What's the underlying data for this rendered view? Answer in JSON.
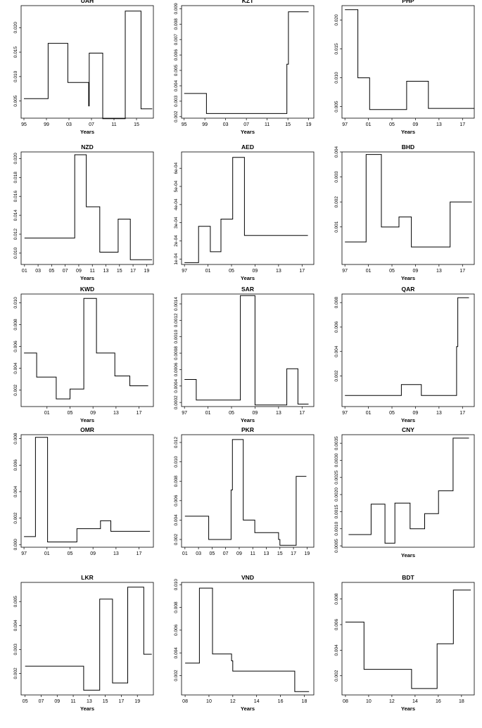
{
  "chart_data": [
    {
      "type": "line",
      "step": true,
      "title": "UAH",
      "xlabel": "Years",
      "ylabel": "",
      "xticks": [
        "95",
        "99",
        "03",
        "07",
        "11",
        "15"
      ],
      "xtick_values": [
        1995,
        1999,
        2003,
        2007,
        2011,
        2015
      ],
      "xlim": [
        1994.5,
        2018
      ],
      "ylim": [
        0.0015,
        0.0245
      ],
      "yticks": [
        "0.005",
        "0.010",
        "0.015",
        "0.020"
      ],
      "ytick_values": [
        0.005,
        0.01,
        0.015,
        0.02
      ],
      "x": [
        1995,
        1997.5,
        1999.3,
        2002.8,
        2006.5,
        2006.6,
        2006.6,
        2009.0,
        2013.0,
        2015.8,
        2017.8
      ],
      "y": [
        0.0055,
        0.0055,
        0.0168,
        0.0088,
        0.004,
        0.0088,
        0.0148,
        0.0014,
        0.0234,
        0.0034,
        0.0034
      ]
    },
    {
      "type": "line",
      "step": true,
      "title": "KZT",
      "xlabel": "Years",
      "ylabel": "",
      "xticks": [
        "95",
        "99",
        "03",
        "07",
        "11",
        "15",
        "19"
      ],
      "xtick_values": [
        1995,
        1999,
        2003,
        2007,
        2011,
        2015,
        2019
      ],
      "xlim": [
        1994.5,
        2020
      ],
      "ylim": [
        0.0019,
        0.0092
      ],
      "yticks": [
        "0.002",
        "0.003",
        "0.004",
        "0.005",
        "0.006",
        "0.007",
        "0.008",
        "0.009"
      ],
      "ytick_values": [
        0.002,
        0.003,
        0.004,
        0.005,
        0.006,
        0.007,
        0.008,
        0.009
      ],
      "x": [
        1995,
        1999.3,
        2014.8,
        2014.8,
        2015,
        2015.1,
        2019
      ],
      "y": [
        0.0035,
        0.0022,
        0.0035,
        0.0054,
        0.0054,
        0.0088,
        0.0088
      ]
    },
    {
      "type": "line",
      "step": true,
      "title": "PHP",
      "xlabel": "Years",
      "ylabel": "",
      "xticks": [
        "97",
        "01",
        "05",
        "09",
        "13",
        "17"
      ],
      "xtick_values": [
        1997,
        2001,
        2005,
        2009,
        2013,
        2017
      ],
      "xlim": [
        1996.5,
        2019
      ],
      "ylim": [
        0.003,
        0.0225
      ],
      "yticks": [
        "0.005",
        "0.010",
        "0.015",
        "0.020"
      ],
      "ytick_values": [
        0.005,
        0.01,
        0.015,
        0.02
      ],
      "x": [
        1997,
        1999.2,
        2000.3,
        2001.2,
        2007.5,
        2011.2,
        2019
      ],
      "y": [
        0.0218,
        0.01,
        0.01,
        0.0045,
        0.0094,
        0.0047,
        0.0047
      ]
    },
    {
      "type": "line",
      "step": true,
      "title": "NZD",
      "xlabel": "Years",
      "ylabel": "",
      "xticks": [
        "01",
        "03",
        "05",
        "07",
        "09",
        "11",
        "13",
        "15",
        "17",
        "19"
      ],
      "xtick_values": [
        2001,
        2003,
        2005,
        2007,
        2009,
        2011,
        2013,
        2015,
        2017,
        2019
      ],
      "xlim": [
        2000.5,
        2020
      ],
      "ylim": [
        0.0088,
        0.0207
      ],
      "yticks": [
        "0.010",
        "0.012",
        "0.014",
        "0.016",
        "0.018",
        "0.020"
      ],
      "ytick_values": [
        0.01,
        0.012,
        0.014,
        0.016,
        0.018,
        0.02
      ],
      "x": [
        2001,
        2008.4,
        2010.1,
        2012.1,
        2014.8,
        2016.6,
        2019.8
      ],
      "y": [
        0.0116,
        0.0204,
        0.0149,
        0.0101,
        0.0136,
        0.0093,
        0.0093
      ]
    },
    {
      "type": "line",
      "step": true,
      "title": "AED",
      "xlabel": "Years",
      "ylabel": "",
      "xticks": [
        "97",
        "01",
        "05",
        "09",
        "13",
        "17"
      ],
      "xtick_values": [
        1997,
        2001,
        2005,
        2009,
        2013,
        2017
      ],
      "xlim": [
        1996.5,
        2019
      ],
      "ylim": [
        7e-05,
        0.00069
      ],
      "yticks": [
        "1e-04",
        "2e-04",
        "3e-04",
        "4e-04",
        "5e-04",
        "6e-04"
      ],
      "ytick_values": [
        0.0001,
        0.0002,
        0.0003,
        0.0004,
        0.0005,
        0.0006
      ],
      "x": [
        1997,
        1999.4,
        2001.4,
        2003.2,
        2005.2,
        2007.2,
        2008.7
      ],
      "y": [
        8e-05,
        0.00028,
        0.00014,
        0.00032,
        0.00066,
        0.00023,
        0.00023
      ],
      "x_end": 2018
    },
    {
      "type": "line",
      "step": true,
      "title": "BHD",
      "xlabel": "Years",
      "ylabel": "",
      "xticks": [
        "97",
        "01",
        "05",
        "09",
        "13",
        "17"
      ],
      "xtick_values": [
        1997,
        2001,
        2005,
        2009,
        2013,
        2017
      ],
      "xlim": [
        1996.5,
        2019
      ],
      "ylim": [
        -0.0005,
        0.004
      ],
      "yticks": [
        "0.001",
        "0.002",
        "0.003",
        "0.004"
      ],
      "ytick_values": [
        0.001,
        0.002,
        0.003,
        0.004
      ],
      "x": [
        1997,
        2000.6,
        2003.2,
        2006.2,
        2008.3,
        2014.9,
        2018.6
      ],
      "y": [
        0.0004,
        0.0039,
        0.001,
        0.0014,
        0.0002,
        0.002,
        0.002
      ]
    },
    {
      "type": "line",
      "step": true,
      "title": "KWD",
      "xlabel": "Years",
      "ylabel": "",
      "xticks": [
        "01",
        "05",
        "09",
        "13",
        "17"
      ],
      "xtick_values": [
        2001,
        2005,
        2009,
        2013,
        2017
      ],
      "xlim": [
        1996.5,
        2019.5
      ],
      "ylim": [
        0.0005,
        0.0108
      ],
      "yticks": [
        "0.002",
        "0.004",
        "0.006",
        "0.008",
        "0.010"
      ],
      "ytick_values": [
        0.002,
        0.004,
        0.006,
        0.008,
        0.01
      ],
      "x": [
        1997,
        1999.2,
        2002.6,
        2005.0,
        2007.4,
        2009.6,
        2012.8,
        2015.4,
        2018.6
      ],
      "y": [
        0.0054,
        0.0032,
        0.0012,
        0.0021,
        0.0104,
        0.0054,
        0.0033,
        0.0024,
        0.0024
      ]
    },
    {
      "type": "line",
      "step": true,
      "title": "SAR",
      "xlabel": "Years",
      "ylabel": "",
      "xticks": [
        "97",
        "01",
        "05",
        "09",
        "13",
        "17"
      ],
      "xtick_values": [
        1997,
        2001,
        2005,
        2009,
        2013,
        2017
      ],
      "xlim": [
        1996.5,
        2019
      ],
      "ylim": [
        0.00015,
        0.00152
      ],
      "yticks": [
        "0.0002",
        "0.0004",
        "0.0006",
        "0.0008",
        "0.0010",
        "0.0012",
        "0.0014"
      ],
      "ytick_values": [
        0.0002,
        0.0004,
        0.0006,
        0.0008,
        0.001,
        0.0012,
        0.0014
      ],
      "x": [
        1997,
        1999.0,
        2006.5,
        2009.0,
        2014.4,
        2016.3,
        2018.1
      ],
      "y": [
        0.00048,
        0.00023,
        0.0015,
        0.00017,
        0.00061,
        0.00018,
        0.00018
      ]
    },
    {
      "type": "line",
      "step": true,
      "title": "QAR",
      "xlabel": "Years",
      "ylabel": "",
      "xticks": [
        "97",
        "01",
        "05",
        "09",
        "13",
        "17"
      ],
      "xtick_values": [
        1997,
        2001,
        2005,
        2009,
        2013,
        2017
      ],
      "xlim": [
        1996.5,
        2019
      ],
      "ylim": [
        -0.0005,
        0.0087
      ],
      "yticks": [
        "0.002",
        "0.004",
        "0.006",
        "0.008"
      ],
      "ytick_values": [
        0.002,
        0.004,
        0.006,
        0.008
      ],
      "x": [
        1997,
        2006.6,
        2010.0,
        2016.0,
        2016.0,
        2016.2,
        2018.1
      ],
      "y": [
        0.0004,
        0.0013,
        0.0004,
        0.0044,
        0.0044,
        0.0084,
        0.0084
      ]
    },
    {
      "type": "line",
      "step": true,
      "title": "OMR",
      "xlabel": "",
      "ylabel": "",
      "xticks": [
        "97",
        "01",
        "05",
        "09",
        "13",
        "17"
      ],
      "xtick_values": [
        1997,
        2001,
        2005,
        2009,
        2013,
        2017
      ],
      "xlim": [
        1996.5,
        2019.5
      ],
      "ylim": [
        -0.0002,
        0.0083
      ],
      "yticks": [
        "0.000",
        "0.002",
        "0.004",
        "0.006",
        "0.008"
      ],
      "ytick_values": [
        0.0,
        0.002,
        0.004,
        0.006,
        0.008
      ],
      "x": [
        1997,
        1999.0,
        2001.1,
        2006.2,
        2010.3,
        2012.1,
        2018.9
      ],
      "y": [
        0.0006,
        0.0081,
        0.0002,
        0.0012,
        0.0018,
        0.001,
        0.001
      ]
    },
    {
      "type": "line",
      "step": true,
      "title": "PKR",
      "xlabel": "",
      "ylabel": "",
      "xticks": [
        "01",
        "03",
        "05",
        "07",
        "09",
        "11",
        "13",
        "15",
        "17",
        "19"
      ],
      "xtick_values": [
        2001,
        2003,
        2005,
        2007,
        2009,
        2011,
        2013,
        2015,
        2017,
        2019
      ],
      "xlim": [
        2000.5,
        2020
      ],
      "ylim": [
        0.0012,
        0.0128
      ],
      "yticks": [
        "0.002",
        "0.004",
        "0.006",
        "0.008",
        "0.010",
        "0.012"
      ],
      "ytick_values": [
        0.002,
        0.004,
        0.006,
        0.008,
        0.01,
        0.012
      ],
      "x": [
        2001,
        2004.5,
        2007.8,
        2007.8,
        2008.0,
        2009.6,
        2011.3,
        2014.8,
        2015.0,
        2017.4,
        2018.9
      ],
      "y": [
        0.0044,
        0.002,
        0.0071,
        0.0071,
        0.0123,
        0.004,
        0.0027,
        0.002,
        0.0014,
        0.0085,
        0.0085
      ]
    },
    {
      "type": "line",
      "step": true,
      "title": "CNY",
      "xlabel": "Years",
      "ylabel": "",
      "xticks": [],
      "xtick_values": [],
      "xlim": [
        0,
        20
      ],
      "ylim": [
        0.00046,
        0.00375
      ],
      "yticks": [
        "0.0005",
        "0.0010",
        "0.0015",
        "0.0020",
        "0.0025",
        "0.0030",
        "0.0035"
      ],
      "ytick_values": [
        0.0005,
        0.001,
        0.0015,
        0.002,
        0.0025,
        0.003,
        0.0035
      ],
      "x": [
        1,
        4.4,
        6.5,
        8.0,
        10.3,
        12.5,
        14.6,
        16.8,
        19.2
      ],
      "y": [
        0.00083,
        0.00172,
        0.00058,
        0.00175,
        0.001,
        0.00144,
        0.00211,
        0.00365,
        0.00365
      ]
    },
    {
      "type": "line",
      "step": true,
      "title": "LKR",
      "xlabel": "Years",
      "ylabel": "",
      "xticks": [
        "05",
        "07",
        "09",
        "11",
        "13",
        "15",
        "17",
        "19"
      ],
      "xtick_values": [
        2005,
        2007,
        2009,
        2011,
        2013,
        2015,
        2017,
        2019
      ],
      "xlim": [
        2004.5,
        2021
      ],
      "ylim": [
        0.0011,
        0.0058
      ],
      "yticks": [
        "0.002",
        "0.003",
        "0.004",
        "0.005"
      ],
      "ytick_values": [
        0.002,
        0.003,
        0.004,
        0.005
      ],
      "x": [
        2005,
        2012.3,
        2014.3,
        2015.9,
        2017.8,
        2019.8,
        2020.8
      ],
      "y": [
        0.0023,
        0.0013,
        0.0051,
        0.0016,
        0.0056,
        0.0028,
        0.0028
      ]
    },
    {
      "type": "line",
      "step": true,
      "title": "VND",
      "xlabel": "Years",
      "ylabel": "",
      "xticks": [
        "08",
        "10",
        "12",
        "14",
        "16",
        "18"
      ],
      "xtick_values": [
        2008,
        2010,
        2012,
        2014,
        2016,
        2018
      ],
      "xlim": [
        2007.7,
        2018.8
      ],
      "ylim": [
        0.0003,
        0.0102
      ],
      "yticks": [
        "0.002",
        "0.004",
        "0.006",
        "0.008",
        "0.010"
      ],
      "ytick_values": [
        0.002,
        0.004,
        0.006,
        0.008,
        0.01
      ],
      "x": [
        2008,
        2009.2,
        2010.3,
        2011.9,
        2012.0,
        2017.2,
        2018.4
      ],
      "y": [
        0.0031,
        0.0097,
        0.0039,
        0.0033,
        0.0024,
        0.0006,
        0.0006
      ]
    },
    {
      "type": "line",
      "step": true,
      "title": "BDT",
      "xlabel": "Years",
      "ylabel": "",
      "xticks": [
        "08",
        "10",
        "12",
        "14",
        "16",
        "18"
      ],
      "xtick_values": [
        2008,
        2010,
        2012,
        2014,
        2016,
        2018
      ],
      "xlim": [
        2007.7,
        2019.1
      ],
      "ylim": [
        0.0005,
        0.0093
      ],
      "yticks": [
        "0.002",
        "0.004",
        "0.006",
        "0.008"
      ],
      "ytick_values": [
        0.002,
        0.004,
        0.006,
        0.008
      ],
      "x": [
        2008,
        2009.6,
        2013.7,
        2015.9,
        2017.3,
        2018.8
      ],
      "y": [
        0.0062,
        0.0025,
        0.001,
        0.0045,
        0.0087,
        0.0087
      ]
    }
  ]
}
